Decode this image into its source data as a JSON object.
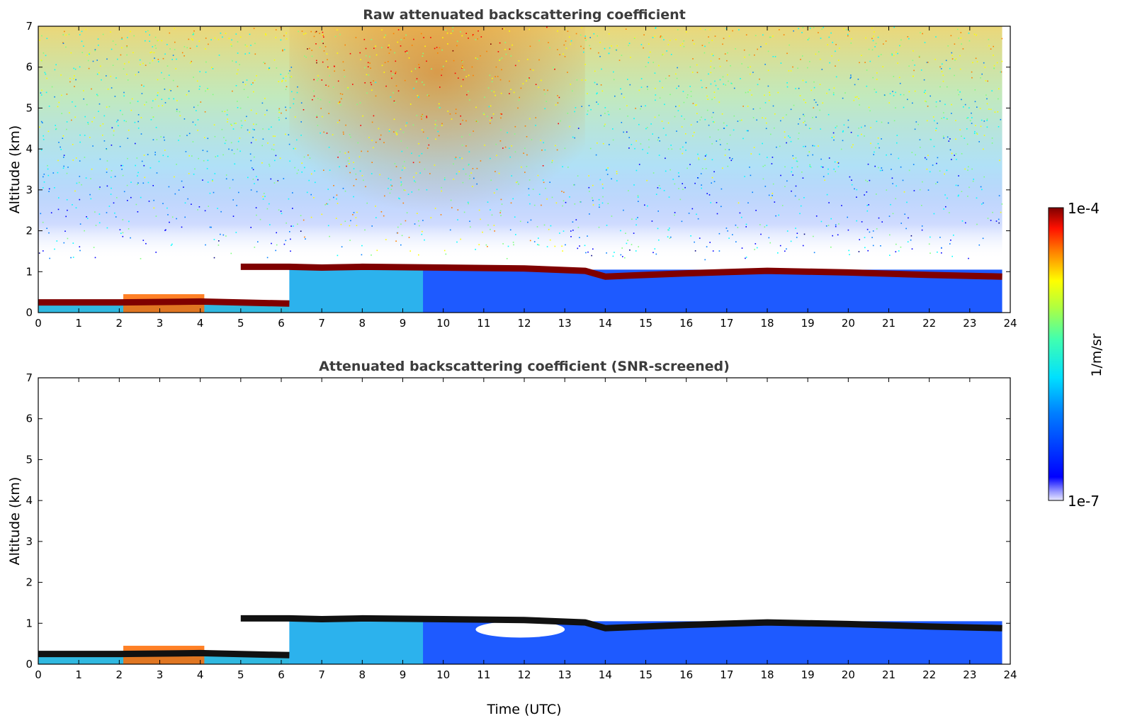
{
  "colors": {
    "jet": [
      "#00007f",
      "#0000ff",
      "#007fff",
      "#00ffff",
      "#7fff7f",
      "#ffff00",
      "#ff7f00",
      "#ff0000",
      "#7f0000"
    ],
    "cloud_layer": "#7f0000",
    "screened_cloud_layer": "#111111",
    "title_color": "#3c3c3c"
  },
  "chart_data": [
    {
      "type": "heatmap",
      "title": "Raw attenuated backscattering coefficient",
      "xlabel": "",
      "ylabel": "Altitude (km)",
      "xlim": [
        0,
        24
      ],
      "ylim": [
        0,
        7
      ],
      "x_ticks": [
        "0",
        "1",
        "2",
        "3",
        "4",
        "5",
        "6",
        "7",
        "8",
        "9",
        "10",
        "11",
        "12",
        "13",
        "14",
        "15",
        "16",
        "17",
        "18",
        "19",
        "20",
        "21",
        "22",
        "23",
        "24"
      ],
      "y_ticks": [
        "0",
        "1",
        "2",
        "3",
        "4",
        "5",
        "6",
        "7"
      ],
      "grid": false,
      "data_end_hour": 23.8,
      "cloud_layer_base_km": [
        {
          "t": 0,
          "z": 0.25
        },
        {
          "t": 2,
          "z": 0.25
        },
        {
          "t": 4,
          "z": 0.27
        },
        {
          "t": 6.2,
          "z": 0.22
        },
        {
          "t": 5.0,
          "z": 1.12
        },
        {
          "t": 6.2,
          "z": 1.12
        },
        {
          "t": 7,
          "z": 1.1
        },
        {
          "t": 8,
          "z": 1.12
        },
        {
          "t": 10,
          "z": 1.1
        },
        {
          "t": 12,
          "z": 1.08
        },
        {
          "t": 13.5,
          "z": 1.02
        },
        {
          "t": 14,
          "z": 0.88
        },
        {
          "t": 16,
          "z": 0.96
        },
        {
          "t": 18,
          "z": 1.02
        },
        {
          "t": 20,
          "z": 0.98
        },
        {
          "t": 22,
          "z": 0.92
        },
        {
          "t": 23.8,
          "z": 0.88
        }
      ]
    },
    {
      "type": "heatmap",
      "title": "Attenuated backscattering coefficient (SNR-screened)",
      "xlabel": "Time (UTC)",
      "ylabel": "Altitude (km)",
      "xlim": [
        0,
        24
      ],
      "ylim": [
        0,
        7
      ],
      "x_ticks": [
        "0",
        "1",
        "2",
        "3",
        "4",
        "5",
        "6",
        "7",
        "8",
        "9",
        "10",
        "11",
        "12",
        "13",
        "14",
        "15",
        "16",
        "17",
        "18",
        "19",
        "20",
        "21",
        "22",
        "23",
        "24"
      ],
      "y_ticks": [
        "0",
        "1",
        "2",
        "3",
        "4",
        "5",
        "6",
        "7"
      ],
      "grid": false,
      "data_end_hour": 23.8
    }
  ],
  "colorbar": {
    "max_label": "1e-4",
    "min_label": "1e-7",
    "unit_label": "1/m/sr",
    "scale": "log",
    "range": [
      1e-07,
      0.0001
    ]
  }
}
